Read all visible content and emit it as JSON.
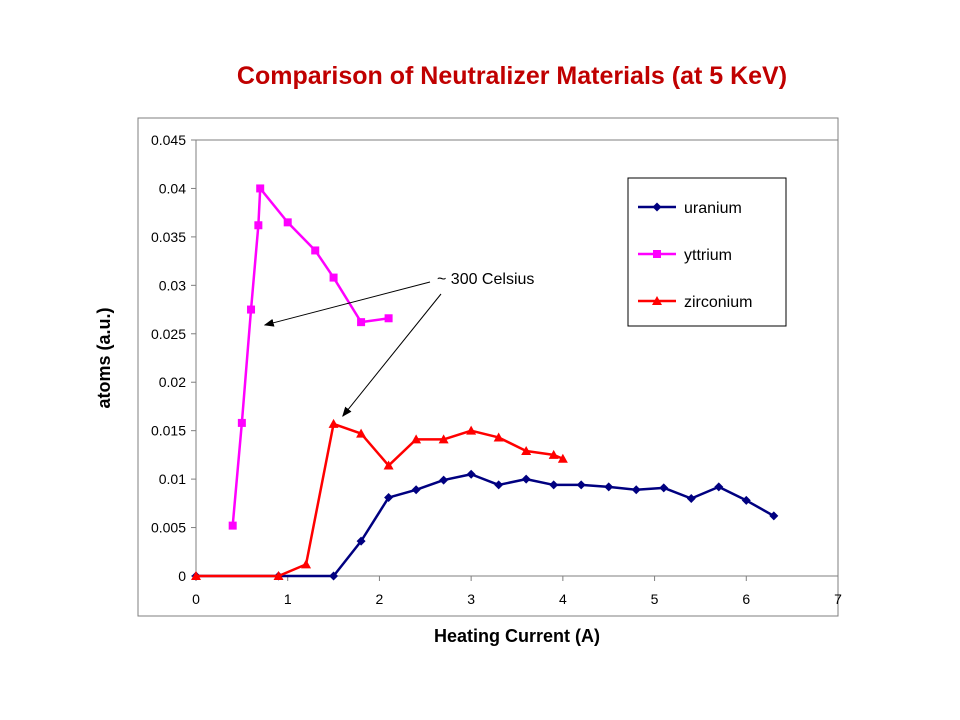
{
  "slide": {
    "title": "Comparison of Neutralizer Materials  (at 5 KeV)"
  },
  "chart_data": {
    "type": "line",
    "title": "",
    "xlabel": "Heating Current (A)",
    "ylabel": "atoms (a.u.)",
    "xlim": [
      0,
      7
    ],
    "ylim": [
      0,
      0.045
    ],
    "xticks": [
      0,
      1,
      2,
      3,
      4,
      5,
      6,
      7
    ],
    "yticks": [
      0,
      0.005,
      0.01,
      0.015,
      0.02,
      0.025,
      0.03,
      0.035,
      0.04,
      0.045
    ],
    "ytick_labels": [
      "0",
      "0.005",
      "0.01",
      "0.015",
      "0.02",
      "0.025",
      "0.03",
      "0.035",
      "0.04",
      "0.045"
    ],
    "grid": false,
    "legend_position": "top-right",
    "series": [
      {
        "name": "uranium",
        "color": "#000080",
        "marker": "diamond",
        "x": [
          0,
          0.9,
          1.5,
          1.8,
          2.1,
          2.4,
          2.7,
          3.0,
          3.3,
          3.6,
          3.9,
          4.2,
          4.5,
          4.8,
          5.1,
          5.4,
          5.7,
          6.0,
          6.3
        ],
        "y": [
          0,
          0,
          0,
          0.0036,
          0.0081,
          0.0089,
          0.0099,
          0.0105,
          0.0094,
          0.01,
          0.0094,
          0.0094,
          0.0092,
          0.0089,
          0.0091,
          0.008,
          0.0092,
          0.0078,
          0.0062
        ]
      },
      {
        "name": "yttrium",
        "color": "#ff00ff",
        "marker": "square",
        "x": [
          0.4,
          0.5,
          0.6,
          0.68,
          0.7,
          1.0,
          1.3,
          1.5,
          1.8,
          2.1
        ],
        "y": [
          0.0052,
          0.0158,
          0.0275,
          0.0362,
          0.04,
          0.0365,
          0.0336,
          0.0308,
          0.0262,
          0.0266
        ]
      },
      {
        "name": "zirconium",
        "color": "#ff0000",
        "marker": "triangle",
        "x": [
          0,
          0.9,
          1.2,
          1.5,
          1.8,
          2.1,
          2.4,
          2.7,
          3.0,
          3.3,
          3.6,
          3.9,
          4.0
        ],
        "y": [
          0,
          0,
          0.0012,
          0.0157,
          0.0147,
          0.0114,
          0.0141,
          0.0141,
          0.015,
          0.0143,
          0.0129,
          0.0125,
          0.0121
        ]
      }
    ],
    "annotations": [
      {
        "text": "~ 300 Celsius",
        "targets": [
          [
            0.75,
            0.0259
          ],
          [
            1.6,
            0.0165
          ]
        ]
      }
    ]
  }
}
